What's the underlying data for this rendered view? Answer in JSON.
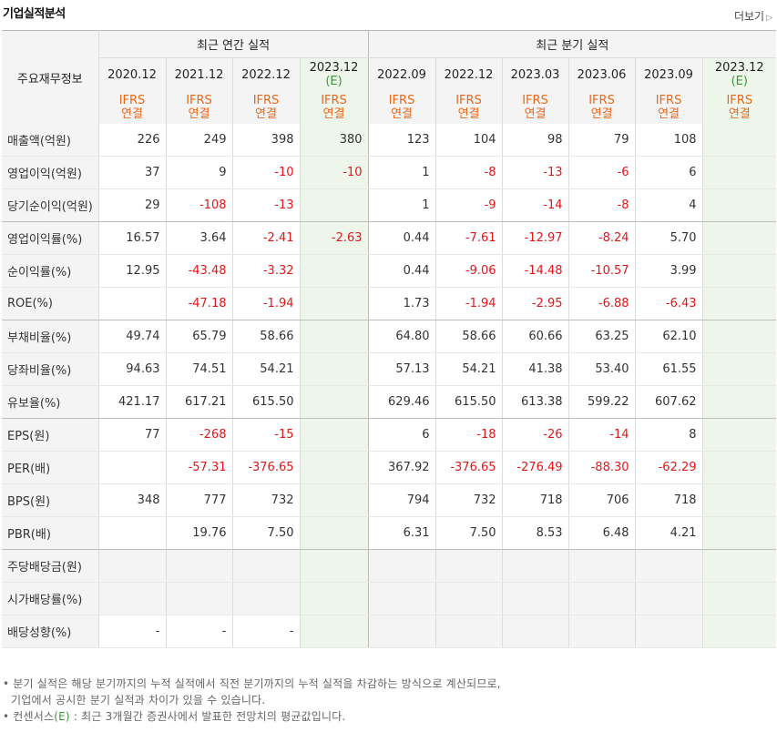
{
  "header": {
    "title": "기업실적분석",
    "more_label": "더보기"
  },
  "table": {
    "corner_label": "주요재무정보",
    "group_annual": "최근 연간 실적",
    "group_quarter": "최근 분기 실적",
    "periods": [
      "2020.12",
      "2021.12",
      "2022.12",
      "2023.12",
      "2022.09",
      "2022.12",
      "2023.03",
      "2023.06",
      "2023.09",
      "2023.12"
    ],
    "estimate_mark": "(E)",
    "ifrs_top": "IFRS",
    "ifrs_bottom": "연결",
    "rows": [
      {
        "label": "매출액(억원)",
        "values": [
          "226",
          "249",
          "398",
          "380",
          "123",
          "104",
          "98",
          "79",
          "108",
          ""
        ]
      },
      {
        "label": "영업이익(억원)",
        "values": [
          "37",
          "9",
          "-10",
          "-10",
          "1",
          "-8",
          "-13",
          "-6",
          "6",
          ""
        ]
      },
      {
        "label": "당기순이익(억원)",
        "values": [
          "29",
          "-108",
          "-13",
          "",
          "1",
          "-9",
          "-14",
          "-8",
          "4",
          ""
        ]
      },
      {
        "label": "영업이익률(%)",
        "values": [
          "16.57",
          "3.64",
          "-2.41",
          "-2.63",
          "0.44",
          "-7.61",
          "-12.97",
          "-8.24",
          "5.70",
          ""
        ]
      },
      {
        "label": "순이익률(%)",
        "values": [
          "12.95",
          "-43.48",
          "-3.32",
          "",
          "0.44",
          "-9.06",
          "-14.48",
          "-10.57",
          "3.99",
          ""
        ]
      },
      {
        "label": "ROE(%)",
        "values": [
          "",
          "-47.18",
          "-1.94",
          "",
          "1.73",
          "-1.94",
          "-2.95",
          "-6.88",
          "-6.43",
          ""
        ]
      },
      {
        "label": "부채비율(%)",
        "values": [
          "49.74",
          "65.79",
          "58.66",
          "",
          "64.80",
          "58.66",
          "60.66",
          "63.25",
          "62.10",
          ""
        ]
      },
      {
        "label": "당좌비율(%)",
        "values": [
          "94.63",
          "74.51",
          "54.21",
          "",
          "57.13",
          "54.21",
          "41.38",
          "53.40",
          "61.55",
          ""
        ]
      },
      {
        "label": "유보율(%)",
        "values": [
          "421.17",
          "617.21",
          "615.50",
          "",
          "629.46",
          "615.50",
          "613.38",
          "599.22",
          "607.62",
          ""
        ]
      },
      {
        "label": "EPS(원)",
        "values": [
          "77",
          "-268",
          "-15",
          "",
          "6",
          "-18",
          "-26",
          "-14",
          "8",
          ""
        ]
      },
      {
        "label": "PER(배)",
        "values": [
          "",
          "-57.31",
          "-376.65",
          "",
          "367.92",
          "-376.65",
          "-276.49",
          "-88.30",
          "-62.29",
          ""
        ]
      },
      {
        "label": "BPS(원)",
        "values": [
          "348",
          "777",
          "732",
          "",
          "794",
          "732",
          "718",
          "706",
          "718",
          ""
        ]
      },
      {
        "label": "PBR(배)",
        "values": [
          "",
          "19.76",
          "7.50",
          "",
          "6.31",
          "7.50",
          "8.53",
          "6.48",
          "4.21",
          ""
        ]
      },
      {
        "label": "주당배당금(원)",
        "values": [
          "",
          "",
          "",
          "",
          "",
          "",
          "",
          "",
          "",
          ""
        ]
      },
      {
        "label": "시가배당률(%)",
        "values": [
          "",
          "",
          "",
          "",
          "",
          "",
          "",
          "",
          "",
          ""
        ]
      },
      {
        "label": "배당성향(%)",
        "values": [
          "-",
          "-",
          "-",
          "",
          "",
          "",
          "",
          "",
          "",
          ""
        ]
      }
    ]
  },
  "notes": {
    "line1": "분기 실적은 해당 분기까지의 누적 실적에서 직전 분기까지의 누적 실적을 차감하는 방식으로 계산되므로,",
    "line2": "기업에서 공시한 분기 실적과 차이가 있을 수 있습니다.",
    "line3_pre": "컨센서스",
    "line3_e": "(E)",
    "line3_post": ": 최근 3개월간 증권사에서 발표한 전망치의 평균값입니다."
  },
  "colors": {
    "negative": "#e01818",
    "estimate": "#3a9a3a",
    "ifrs": "#e8681a",
    "estimate_bg": "#eef5ea"
  }
}
